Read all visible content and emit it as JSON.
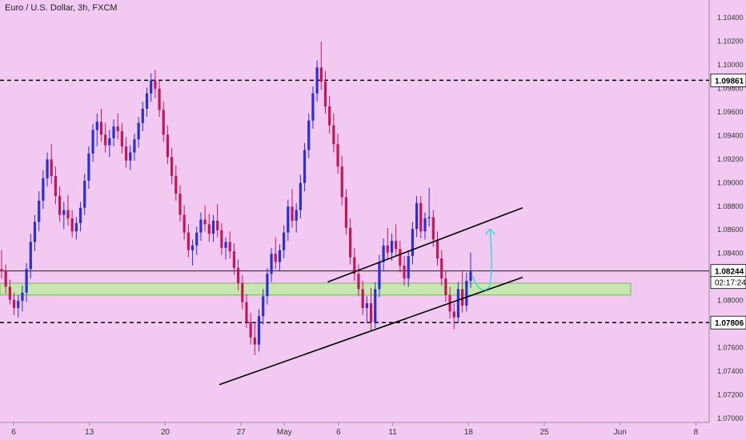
{
  "chart_data": {
    "type": "candlestick",
    "title": "Euro / U.S. Dollar, 3h, FXCM",
    "y_ticks": [
      "1.10400",
      "1.10200",
      "1.10000",
      "1.09800",
      "1.09600",
      "1.09400",
      "1.09200",
      "1.09000",
      "1.08800",
      "1.08600",
      "1.08400",
      "1.08200",
      "1.08000",
      "1.07800",
      "1.07600",
      "1.07400",
      "1.07200",
      "1.07000"
    ],
    "y_tick_values": [
      1.104,
      1.102,
      1.1,
      1.098,
      1.096,
      1.094,
      1.092,
      1.09,
      1.088,
      1.086,
      1.084,
      1.082,
      1.08,
      1.078,
      1.076,
      1.074,
      1.072,
      1.07
    ],
    "ylim": [
      1.07,
      1.1058
    ],
    "x_ticks": [
      "6",
      "13",
      "20",
      "27",
      "May",
      "6",
      "11",
      "18",
      "25",
      "Jun",
      "8"
    ],
    "x_tick_dates": [
      "2023-04-06",
      "2023-04-13",
      "2023-04-20",
      "2023-04-27",
      "2023-05-01",
      "2023-05-06",
      "2023-05-11",
      "2023-05-18",
      "2023-05-25",
      "2023-06-01",
      "2023-06-08"
    ],
    "price_labels": [
      {
        "value": 1.09861,
        "text": "1.09861",
        "style": "dashed"
      },
      {
        "value": 1.08244,
        "text": "1.08244",
        "style": "solid"
      },
      {
        "value": 1.07806,
        "text": "1.07806",
        "style": "dashed"
      }
    ],
    "countdown": "02:17:24",
    "support_zone": [
      1.0804,
      1.0814
    ],
    "channel_upper": {
      "from": [
        "2023-05-05",
        1.0815
      ],
      "to": [
        "2023-05-23",
        1.0878
      ]
    },
    "channel_lower": {
      "from": [
        "2023-04-25",
        1.0728
      ],
      "to": [
        "2023-05-23",
        1.0819
      ]
    },
    "arrow": {
      "start": [
        "2023-05-19",
        1.0809
      ],
      "end": [
        "2023-05-20",
        1.086
      ]
    },
    "colors": {
      "background": "#f1c9f1",
      "bull": "#2a2fd6",
      "bear": "#c2185b",
      "zone_fill": "#c8e6b0",
      "zone_border": "#7cb35b",
      "arrow": "#3fd9d9",
      "line": "#000000"
    },
    "candles": [
      [
        1.0826,
        1.0842,
        1.0818,
        1.0824
      ],
      [
        1.0824,
        1.083,
        1.0805,
        1.0811
      ],
      [
        1.0811,
        1.0817,
        1.0796,
        1.08
      ],
      [
        1.08,
        1.0806,
        1.0787,
        1.0793
      ],
      [
        1.0793,
        1.0804,
        1.0785,
        1.0799
      ],
      [
        1.0799,
        1.0812,
        1.079,
        1.0806
      ],
      [
        1.0806,
        1.0831,
        1.0798,
        1.0826
      ],
      [
        1.0826,
        1.0856,
        1.0818,
        1.0849
      ],
      [
        1.0849,
        1.0872,
        1.0841,
        1.0866
      ],
      [
        1.0866,
        1.0892,
        1.0858,
        1.0884
      ],
      [
        1.0884,
        1.091,
        1.0877,
        1.0903
      ],
      [
        1.0903,
        1.0925,
        1.0896,
        1.0919
      ],
      [
        1.0919,
        1.0932,
        1.0898,
        1.0905
      ],
      [
        1.0905,
        1.0913,
        1.0881,
        1.0888
      ],
      [
        1.0888,
        1.0896,
        1.0866,
        1.0872
      ],
      [
        1.0872,
        1.0883,
        1.086,
        1.0876
      ],
      [
        1.0876,
        1.0889,
        1.0863,
        1.0869
      ],
      [
        1.0869,
        1.0876,
        1.0853,
        1.0858
      ],
      [
        1.0858,
        1.087,
        1.0851,
        1.0865
      ],
      [
        1.0865,
        1.0883,
        1.0858,
        1.0878
      ],
      [
        1.0878,
        1.0907,
        1.0872,
        1.0901
      ],
      [
        1.0901,
        1.093,
        1.0894,
        1.0924
      ],
      [
        1.0924,
        1.0949,
        1.0917,
        1.0944
      ],
      [
        1.0944,
        1.0958,
        1.093,
        1.0951
      ],
      [
        1.0951,
        1.0962,
        1.0934,
        1.094
      ],
      [
        1.094,
        1.095,
        1.0925,
        1.0931
      ],
      [
        1.0931,
        1.0944,
        1.0921,
        1.0937
      ],
      [
        1.0937,
        1.0953,
        1.093,
        1.0947
      ],
      [
        1.0947,
        1.0958,
        1.0936,
        1.0943
      ],
      [
        1.0943,
        1.095,
        1.0924,
        1.093
      ],
      [
        1.093,
        1.0938,
        1.0912,
        1.0918
      ],
      [
        1.0918,
        1.0931,
        1.091,
        1.0925
      ],
      [
        1.0925,
        1.0941,
        1.0918,
        1.0936
      ],
      [
        1.0936,
        1.0955,
        1.0929,
        1.095
      ],
      [
        1.095,
        1.0968,
        1.0943,
        1.0962
      ],
      [
        1.0962,
        1.098,
        1.0955,
        1.0975
      ],
      [
        1.0975,
        1.0992,
        1.0968,
        1.0986
      ],
      [
        1.0986,
        1.0995,
        1.0971,
        1.0979
      ],
      [
        1.0979,
        1.0986,
        1.0955,
        1.0961
      ],
      [
        1.0961,
        1.0968,
        1.0934,
        1.094
      ],
      [
        1.094,
        1.0948,
        1.0915,
        1.0921
      ],
      [
        1.0921,
        1.0929,
        1.0898,
        1.0905
      ],
      [
        1.0905,
        1.0914,
        1.0884,
        1.089
      ],
      [
        1.089,
        1.0897,
        1.0866,
        1.0872
      ],
      [
        1.0872,
        1.088,
        1.0851,
        1.0857
      ],
      [
        1.0857,
        1.0864,
        1.0836,
        1.0842
      ],
      [
        1.0842,
        1.0851,
        1.0829,
        1.0846
      ],
      [
        1.0846,
        1.0862,
        1.0838,
        1.0857
      ],
      [
        1.0857,
        1.0874,
        1.085,
        1.0868
      ],
      [
        1.0868,
        1.088,
        1.0858,
        1.0864
      ],
      [
        1.0864,
        1.0873,
        1.0849,
        1.0856
      ],
      [
        1.0856,
        1.0872,
        1.0849,
        1.0867
      ],
      [
        1.0867,
        1.0881,
        1.0853,
        1.0859
      ],
      [
        1.0859,
        1.0865,
        1.0838,
        1.0844
      ],
      [
        1.0844,
        1.0853,
        1.0834,
        1.0849
      ],
      [
        1.0849,
        1.0858,
        1.0835,
        1.0841
      ],
      [
        1.0841,
        1.0848,
        1.0821,
        1.0827
      ],
      [
        1.0827,
        1.0834,
        1.0808,
        1.0814
      ],
      [
        1.0814,
        1.0821,
        1.0792,
        1.0798
      ],
      [
        1.0798,
        1.0805,
        1.0776,
        1.0781
      ],
      [
        1.0781,
        1.0789,
        1.0762,
        1.0768
      ],
      [
        1.0768,
        1.0781,
        1.0753,
        1.0762
      ],
      [
        1.0762,
        1.0792,
        1.0756,
        1.0786
      ],
      [
        1.0786,
        1.0809,
        1.0779,
        1.0803
      ],
      [
        1.0803,
        1.0827,
        1.0796,
        1.0822
      ],
      [
        1.0822,
        1.0844,
        1.0815,
        1.0839
      ],
      [
        1.0839,
        1.0853,
        1.0826,
        1.0832
      ],
      [
        1.0832,
        1.0847,
        1.0825,
        1.0842
      ],
      [
        1.0842,
        1.0863,
        1.0835,
        1.0857
      ],
      [
        1.0857,
        1.0885,
        1.085,
        1.0879
      ],
      [
        1.0879,
        1.0894,
        1.0861,
        1.0867
      ],
      [
        1.0867,
        1.0882,
        1.0857,
        1.0876
      ],
      [
        1.0876,
        1.0906,
        1.0869,
        1.0899
      ],
      [
        1.0899,
        1.0933,
        1.0892,
        1.0927
      ],
      [
        1.0927,
        1.0958,
        1.092,
        1.0952
      ],
      [
        1.0952,
        1.0981,
        1.0945,
        1.0975
      ],
      [
        1.0975,
        1.1003,
        1.0968,
        1.0997
      ],
      [
        1.0997,
        1.1019,
        1.0978,
        1.0985
      ],
      [
        1.0985,
        1.0994,
        1.0958,
        1.0964
      ],
      [
        1.0964,
        1.0973,
        1.0941,
        1.0948
      ],
      [
        1.0948,
        1.0958,
        1.0925,
        1.0932
      ],
      [
        1.0932,
        1.0941,
        1.0907,
        1.0913
      ],
      [
        1.0913,
        1.0922,
        1.088,
        1.0887
      ],
      [
        1.0887,
        1.0894,
        1.0855,
        1.0861
      ],
      [
        1.0861,
        1.0869,
        1.083,
        1.0836
      ],
      [
        1.0836,
        1.0844,
        1.0816,
        1.0822
      ],
      [
        1.0822,
        1.083,
        1.0803,
        1.0809
      ],
      [
        1.0809,
        1.0816,
        1.0787,
        1.0793
      ],
      [
        1.0793,
        1.0803,
        1.078,
        1.0797
      ],
      [
        1.0797,
        1.081,
        1.0774,
        1.0781
      ],
      [
        1.0781,
        1.0815,
        1.0776,
        1.0809
      ],
      [
        1.0809,
        1.0838,
        1.0802,
        1.0832
      ],
      [
        1.0832,
        1.0852,
        1.0825,
        1.0846
      ],
      [
        1.0846,
        1.0861,
        1.0834,
        1.084
      ],
      [
        1.084,
        1.0856,
        1.0833,
        1.085
      ],
      [
        1.085,
        1.0864,
        1.0837,
        1.0843
      ],
      [
        1.0843,
        1.085,
        1.0823,
        1.0829
      ],
      [
        1.0829,
        1.0837,
        1.0812,
        1.0818
      ],
      [
        1.0818,
        1.0842,
        1.0811,
        1.0837
      ],
      [
        1.0837,
        1.0866,
        1.083,
        1.086
      ],
      [
        1.086,
        1.0888,
        1.0853,
        1.0882
      ],
      [
        1.0882,
        1.0888,
        1.0852,
        1.0858
      ],
      [
        1.0858,
        1.0874,
        1.0851,
        1.0869
      ],
      [
        1.0869,
        1.0895,
        1.0862,
        1.087
      ],
      [
        1.087,
        1.0876,
        1.0845,
        1.0851
      ],
      [
        1.0851,
        1.0858,
        1.0829,
        1.0835
      ],
      [
        1.0835,
        1.0842,
        1.0812,
        1.0818
      ],
      [
        1.0818,
        1.0825,
        1.0798,
        1.0804
      ],
      [
        1.0804,
        1.0811,
        1.0784,
        1.079
      ],
      [
        1.079,
        1.0797,
        1.0775,
        1.0785
      ],
      [
        1.0785,
        1.0815,
        1.078,
        1.0809
      ],
      [
        1.0809,
        1.0825,
        1.0789,
        1.0795
      ],
      [
        1.0795,
        1.0823,
        1.079,
        1.0816
      ],
      [
        1.0816,
        1.084,
        1.081,
        1.0824
      ]
    ]
  }
}
